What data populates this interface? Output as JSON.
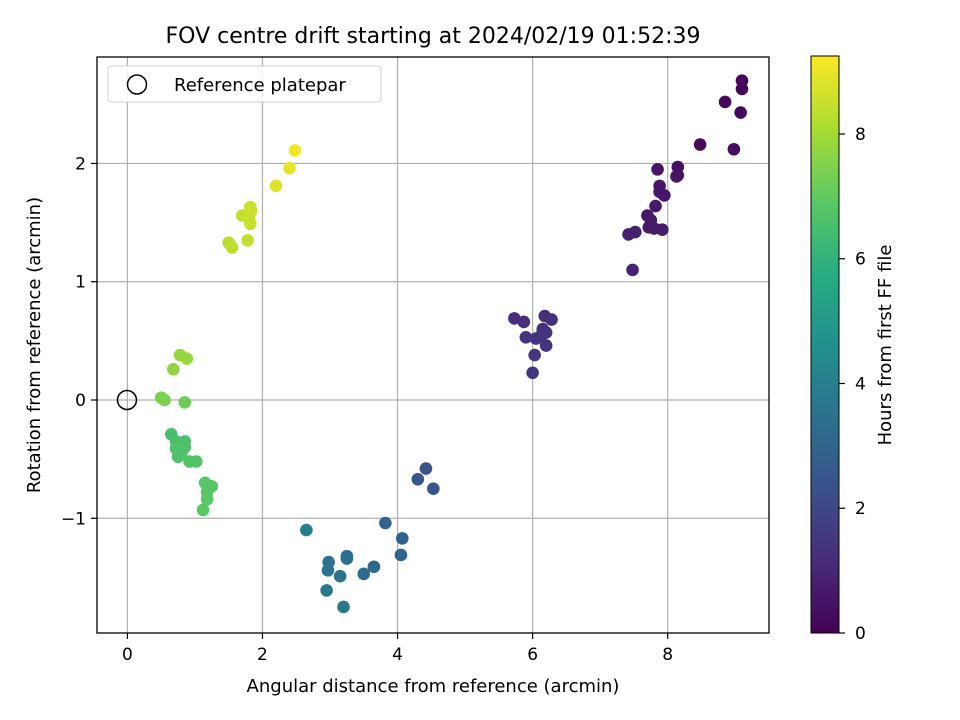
{
  "chart_data": {
    "type": "scatter",
    "title": "FOV centre drift starting at 2024/02/19 01:52:39",
    "xlabel": "Angular distance from reference (arcmin)",
    "ylabel": "Rotation from reference (arcmin)",
    "xlim": [
      -0.45,
      9.5
    ],
    "ylim": [
      -1.97,
      2.9
    ],
    "xticks": [
      0,
      2,
      4,
      6,
      8
    ],
    "yticks": [
      -1,
      0,
      1,
      2
    ],
    "xtick_labels": [
      "0",
      "2",
      "4",
      "6",
      "8"
    ],
    "ytick_labels": [
      "−1",
      "0",
      "1",
      "2"
    ],
    "grid": true,
    "legend": {
      "location": "top-left",
      "entries": [
        "Reference platepar"
      ]
    },
    "reference_point": {
      "x": 0,
      "y": 0,
      "label": "Reference platepar"
    },
    "colorbar": {
      "label": "Hours from first FF file",
      "colormap": "viridis",
      "range": [
        0,
        9.25
      ],
      "ticks": [
        0,
        2,
        4,
        6,
        8
      ],
      "tick_labels": [
        "0",
        "2",
        "4",
        "6",
        "8"
      ]
    },
    "points": [
      {
        "x": 9.1,
        "y": 2.7,
        "h": 0.1
      },
      {
        "x": 9.1,
        "y": 2.63,
        "h": 0.15
      },
      {
        "x": 8.85,
        "y": 2.52,
        "h": 0.2
      },
      {
        "x": 9.08,
        "y": 2.43,
        "h": 0.25
      },
      {
        "x": 8.48,
        "y": 2.16,
        "h": 0.3
      },
      {
        "x": 8.98,
        "y": 2.12,
        "h": 0.35
      },
      {
        "x": 8.15,
        "y": 1.97,
        "h": 0.45
      },
      {
        "x": 7.85,
        "y": 1.95,
        "h": 0.5
      },
      {
        "x": 8.15,
        "y": 1.9,
        "h": 0.5
      },
      {
        "x": 8.13,
        "y": 1.89,
        "h": 0.55
      },
      {
        "x": 7.88,
        "y": 1.81,
        "h": 0.55
      },
      {
        "x": 7.88,
        "y": 1.76,
        "h": 0.6
      },
      {
        "x": 7.95,
        "y": 1.73,
        "h": 0.6
      },
      {
        "x": 7.82,
        "y": 1.64,
        "h": 0.65
      },
      {
        "x": 7.7,
        "y": 1.56,
        "h": 0.65
      },
      {
        "x": 7.75,
        "y": 1.52,
        "h": 0.7
      },
      {
        "x": 7.72,
        "y": 1.46,
        "h": 0.7
      },
      {
        "x": 7.8,
        "y": 1.45,
        "h": 0.75
      },
      {
        "x": 7.92,
        "y": 1.44,
        "h": 0.75
      },
      {
        "x": 7.52,
        "y": 1.42,
        "h": 0.8
      },
      {
        "x": 7.42,
        "y": 1.4,
        "h": 0.8
      },
      {
        "x": 7.48,
        "y": 1.1,
        "h": 0.85
      },
      {
        "x": 5.73,
        "y": 0.69,
        "h": 1.2
      },
      {
        "x": 5.87,
        "y": 0.66,
        "h": 1.2
      },
      {
        "x": 6.18,
        "y": 0.71,
        "h": 1.25
      },
      {
        "x": 6.28,
        "y": 0.68,
        "h": 1.25
      },
      {
        "x": 6.15,
        "y": 0.6,
        "h": 1.3
      },
      {
        "x": 6.2,
        "y": 0.57,
        "h": 1.3
      },
      {
        "x": 5.9,
        "y": 0.53,
        "h": 1.35
      },
      {
        "x": 6.05,
        "y": 0.52,
        "h": 1.35
      },
      {
        "x": 6.12,
        "y": 0.54,
        "h": 1.4
      },
      {
        "x": 6.2,
        "y": 0.46,
        "h": 1.4
      },
      {
        "x": 6.03,
        "y": 0.38,
        "h": 1.45
      },
      {
        "x": 6.0,
        "y": 0.23,
        "h": 1.5
      },
      {
        "x": 4.42,
        "y": -0.58,
        "h": 2.4
      },
      {
        "x": 4.3,
        "y": -0.67,
        "h": 2.5
      },
      {
        "x": 4.53,
        "y": -0.75,
        "h": 2.45
      },
      {
        "x": 3.82,
        "y": -1.04,
        "h": 3.0
      },
      {
        "x": 4.07,
        "y": -1.17,
        "h": 2.9
      },
      {
        "x": 4.05,
        "y": -1.31,
        "h": 3.0
      },
      {
        "x": 3.65,
        "y": -1.41,
        "h": 3.2
      },
      {
        "x": 3.5,
        "y": -1.47,
        "h": 3.25
      },
      {
        "x": 3.25,
        "y": -1.32,
        "h": 3.4
      },
      {
        "x": 3.25,
        "y": -1.34,
        "h": 3.4
      },
      {
        "x": 2.98,
        "y": -1.37,
        "h": 3.55
      },
      {
        "x": 2.97,
        "y": -1.44,
        "h": 3.55
      },
      {
        "x": 3.15,
        "y": -1.49,
        "h": 3.5
      },
      {
        "x": 2.95,
        "y": -1.61,
        "h": 3.65
      },
      {
        "x": 3.2,
        "y": -1.75,
        "h": 3.7
      },
      {
        "x": 2.65,
        "y": -1.1,
        "h": 3.9
      },
      {
        "x": 0.65,
        "y": -0.29,
        "h": 6.5
      },
      {
        "x": 0.72,
        "y": -0.35,
        "h": 6.55
      },
      {
        "x": 0.85,
        "y": -0.35,
        "h": 6.6
      },
      {
        "x": 0.78,
        "y": -0.38,
        "h": 6.6
      },
      {
        "x": 0.85,
        "y": -0.4,
        "h": 6.65
      },
      {
        "x": 0.72,
        "y": -0.41,
        "h": 6.65
      },
      {
        "x": 0.8,
        "y": -0.45,
        "h": 6.7
      },
      {
        "x": 0.75,
        "y": -0.48,
        "h": 6.7
      },
      {
        "x": 0.92,
        "y": -0.52,
        "h": 6.75
      },
      {
        "x": 1.02,
        "y": -0.52,
        "h": 6.75
      },
      {
        "x": 1.15,
        "y": -0.7,
        "h": 6.8
      },
      {
        "x": 1.25,
        "y": -0.73,
        "h": 6.85
      },
      {
        "x": 1.18,
        "y": -0.78,
        "h": 6.85
      },
      {
        "x": 1.18,
        "y": -0.84,
        "h": 6.9
      },
      {
        "x": 1.12,
        "y": -0.93,
        "h": 6.9
      },
      {
        "x": 0.5,
        "y": 0.02,
        "h": 7.4
      },
      {
        "x": 0.55,
        "y": 0.0,
        "h": 7.4
      },
      {
        "x": 0.85,
        "y": -0.02,
        "h": 7.2
      },
      {
        "x": 0.68,
        "y": 0.26,
        "h": 7.7
      },
      {
        "x": 0.78,
        "y": 0.38,
        "h": 7.75
      },
      {
        "x": 0.88,
        "y": 0.35,
        "h": 7.8
      },
      {
        "x": 1.5,
        "y": 1.33,
        "h": 8.3
      },
      {
        "x": 1.55,
        "y": 1.29,
        "h": 8.35
      },
      {
        "x": 1.78,
        "y": 1.35,
        "h": 8.4
      },
      {
        "x": 1.7,
        "y": 1.56,
        "h": 8.45
      },
      {
        "x": 1.8,
        "y": 1.55,
        "h": 8.5
      },
      {
        "x": 1.82,
        "y": 1.49,
        "h": 8.5
      },
      {
        "x": 1.82,
        "y": 1.63,
        "h": 8.55
      },
      {
        "x": 1.83,
        "y": 1.6,
        "h": 8.55
      },
      {
        "x": 2.2,
        "y": 1.81,
        "h": 8.8
      },
      {
        "x": 2.4,
        "y": 1.96,
        "h": 8.95
      },
      {
        "x": 2.48,
        "y": 2.11,
        "h": 9.1
      }
    ]
  }
}
